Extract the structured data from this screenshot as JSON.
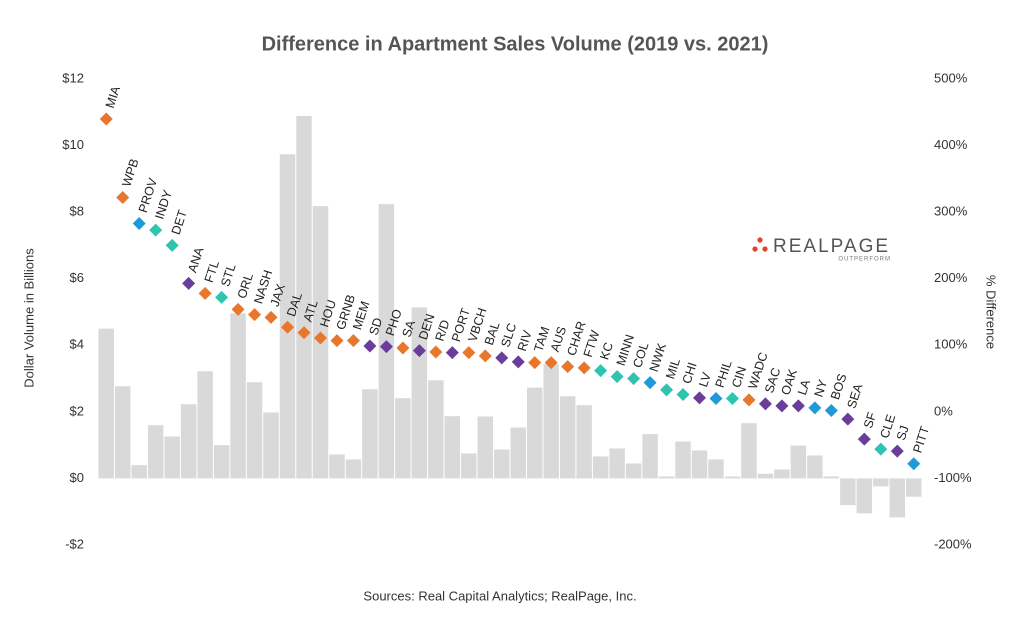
{
  "chart_data": {
    "type": "bar_diamond",
    "title": "Difference in Apartment Sales Volume (2019 vs. 2021)",
    "y_label": "Dollar Volume in Billions",
    "y2_label": "% Difference",
    "source": "Sources: Real Capital Analytics; RealPage, Inc.",
    "logo": {
      "name": "REALPAGE",
      "tagline": "OUTPERFORM"
    },
    "categories": [
      "MIA",
      "WPB",
      "PROV",
      "INDY",
      "DET",
      "ANA",
      "FTL",
      "STL",
      "ORL",
      "NASH",
      "JAX",
      "DAL",
      "ATL",
      "HOU",
      "GRNB",
      "MEM",
      "SD",
      "PHO",
      "SA",
      "DEN",
      "R/D",
      "PORT",
      "VBCH",
      "BAL",
      "SLC",
      "RIV",
      "TAM",
      "AUS",
      "CHAR",
      "FTW",
      "KC",
      "MINN",
      "COL",
      "NWK",
      "MIL",
      "CHI",
      "LV",
      "PHIL",
      "CIN",
      "WADC",
      "SAC",
      "OAK",
      "LA",
      "NY",
      "BOS",
      "SEA",
      "SF",
      "CLE",
      "SJ",
      "PITT"
    ],
    "series": [
      {
        "color": "#d9d9d9",
        "values": [
          4.5,
          2.77,
          0.4,
          1.6,
          1.26,
          2.23,
          3.22,
          1.0,
          4.96,
          2.89,
          1.98,
          9.74,
          10.89,
          8.18,
          0.72,
          0.57,
          2.68,
          8.24,
          2.41,
          5.14,
          2.95,
          1.87,
          0.75,
          1.86,
          0.87,
          1.53,
          2.73,
          3.43,
          2.47,
          2.2,
          0.66,
          0.9,
          0.45,
          1.33,
          0.06,
          1.11,
          0.84,
          0.57,
          0.06,
          1.66,
          0.14,
          0.27,
          0.99,
          0.69,
          0.06,
          -0.8,
          -1.05,
          -0.24,
          -1.17,
          -0.55
        ]
      },
      {
        "axis": "y2",
        "values": [
          440,
          322,
          283,
          273,
          250,
          193,
          178,
          172,
          154,
          146,
          142,
          127,
          119,
          111,
          107,
          107,
          99,
          98,
          96,
          92,
          90,
          89,
          89,
          84,
          81,
          75,
          74,
          74,
          68,
          66,
          62,
          53,
          50,
          44,
          33,
          26,
          21,
          20,
          20,
          18,
          12,
          9,
          9,
          6,
          2,
          -11,
          -41,
          -56,
          -59,
          -78
        ],
        "colors": [
          "#e8772e",
          "#e8772e",
          "#1f9ad6",
          "#2ec4b0",
          "#2ec4b0",
          "#6a3d9a",
          "#e8772e",
          "#2ec4b0",
          "#e8772e",
          "#e8772e",
          "#e8772e",
          "#e8772e",
          "#e8772e",
          "#e8772e",
          "#e8772e",
          "#e8772e",
          "#6a3d9a",
          "#6a3d9a",
          "#e8772e",
          "#6a3d9a",
          "#e8772e",
          "#6a3d9a",
          "#e8772e",
          "#e8772e",
          "#6a3d9a",
          "#6a3d9a",
          "#e8772e",
          "#e8772e",
          "#e8772e",
          "#e8772e",
          "#2ec4b0",
          "#2ec4b0",
          "#2ec4b0",
          "#1f9ad6",
          "#2ec4b0",
          "#2ec4b0",
          "#6a3d9a",
          "#1f9ad6",
          "#2ec4b0",
          "#e8772e",
          "#6a3d9a",
          "#6a3d9a",
          "#6a3d9a",
          "#1f9ad6",
          "#1f9ad6",
          "#6a3d9a",
          "#6a3d9a",
          "#2ec4b0",
          "#6a3d9a",
          "#1f9ad6"
        ]
      }
    ],
    "ylim": [
      -2,
      12
    ],
    "yticks": [
      {
        "value": -2,
        "label": "-$2"
      },
      {
        "value": 0,
        "label": "$0"
      },
      {
        "value": 2,
        "label": "$2"
      },
      {
        "value": 4,
        "label": "$4"
      },
      {
        "value": 6,
        "label": "$6"
      },
      {
        "value": 8,
        "label": "$8"
      },
      {
        "value": 10,
        "label": "$10"
      },
      {
        "value": 12,
        "label": "$12"
      }
    ],
    "y2lim": [
      -200,
      500
    ],
    "y2ticks": [
      {
        "value": -200,
        "label": "-200%"
      },
      {
        "value": -100,
        "label": "-100%"
      },
      {
        "value": 0,
        "label": "0%"
      },
      {
        "value": 100,
        "label": "100%"
      },
      {
        "value": 200,
        "label": "200%"
      },
      {
        "value": 300,
        "label": "300%"
      },
      {
        "value": 400,
        "label": "400%"
      },
      {
        "value": 500,
        "label": "500%"
      }
    ],
    "grid": false
  }
}
